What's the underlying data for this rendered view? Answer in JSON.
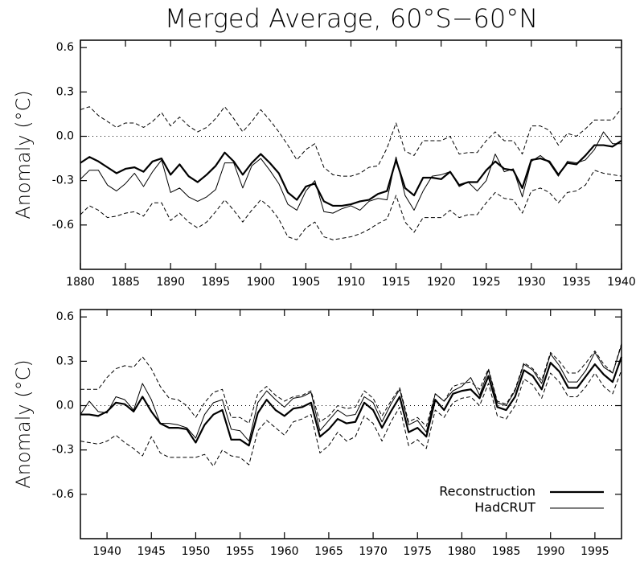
{
  "chart_data": [
    {
      "type": "line",
      "title": "Merged Average, 60°S−60°N",
      "ylabel": "Anomaly (°C)",
      "x": [
        1880,
        1881,
        1882,
        1883,
        1884,
        1885,
        1886,
        1887,
        1888,
        1889,
        1890,
        1891,
        1892,
        1893,
        1894,
        1895,
        1896,
        1897,
        1898,
        1899,
        1900,
        1901,
        1902,
        1903,
        1904,
        1905,
        1906,
        1907,
        1908,
        1909,
        1910,
        1911,
        1912,
        1913,
        1914,
        1915,
        1916,
        1917,
        1918,
        1919,
        1920,
        1921,
        1922,
        1923,
        1924,
        1925,
        1926,
        1927,
        1928,
        1929,
        1930,
        1931,
        1932,
        1933,
        1934,
        1935,
        1936,
        1937,
        1938,
        1939,
        1940
      ],
      "xlim": [
        1880,
        1940
      ],
      "xticks": [
        1880,
        1885,
        1890,
        1895,
        1900,
        1905,
        1910,
        1915,
        1920,
        1925,
        1930,
        1935,
        1940
      ],
      "ylim": [
        -0.9,
        0.65
      ],
      "yticks": [
        0.6,
        0.3,
        {
          "value": 0,
          "label": "0.0"
        },
        -0.3,
        -0.6
      ],
      "refline": 0,
      "series": [
        {
          "color": "#000000",
          "linewidth": 2.2,
          "style": "solid",
          "values": [
            -0.18,
            -0.14,
            -0.17,
            -0.21,
            -0.25,
            -0.22,
            -0.21,
            -0.24,
            -0.17,
            -0.15,
            -0.26,
            -0.19,
            -0.27,
            -0.31,
            -0.26,
            -0.2,
            -0.11,
            -0.17,
            -0.26,
            -0.18,
            -0.12,
            -0.18,
            -0.25,
            -0.38,
            -0.43,
            -0.34,
            -0.32,
            -0.44,
            -0.47,
            -0.47,
            -0.46,
            -0.44,
            -0.43,
            -0.39,
            -0.37,
            -0.16,
            -0.35,
            -0.4,
            -0.28,
            -0.28,
            -0.29,
            -0.24,
            -0.33,
            -0.31,
            -0.31,
            -0.23,
            -0.17,
            -0.22,
            -0.23,
            -0.35,
            -0.16,
            -0.15,
            -0.17,
            -0.26,
            -0.18,
            -0.19,
            -0.13,
            -0.06,
            -0.06,
            -0.07,
            -0.03
          ]
        },
        {
          "color": "#000000",
          "linewidth": 1,
          "style": "solid",
          "values": [
            -0.29,
            -0.23,
            -0.23,
            -0.33,
            -0.37,
            -0.32,
            -0.25,
            -0.34,
            -0.24,
            -0.16,
            -0.38,
            -0.35,
            -0.41,
            -0.44,
            -0.41,
            -0.36,
            -0.18,
            -0.18,
            -0.35,
            -0.2,
            -0.15,
            -0.23,
            -0.32,
            -0.46,
            -0.5,
            -0.37,
            -0.3,
            -0.51,
            -0.52,
            -0.49,
            -0.47,
            -0.5,
            -0.44,
            -0.42,
            -0.43,
            -0.14,
            -0.4,
            -0.5,
            -0.37,
            -0.27,
            -0.26,
            -0.24,
            -0.34,
            -0.31,
            -0.37,
            -0.3,
            -0.12,
            -0.24,
            -0.22,
            -0.41,
            -0.17,
            -0.13,
            -0.18,
            -0.27,
            -0.17,
            -0.18,
            -0.16,
            -0.09,
            0.03,
            -0.05,
            -0.05
          ]
        },
        {
          "color": "#000000",
          "linewidth": 1,
          "style": "dashed",
          "values": [
            0.18,
            0.2,
            0.14,
            0.1,
            0.06,
            0.09,
            0.09,
            0.06,
            0.1,
            0.16,
            0.07,
            0.13,
            0.07,
            0.03,
            0.06,
            0.12,
            0.2,
            0.12,
            0.03,
            0.1,
            0.18,
            0.11,
            0.03,
            -0.06,
            -0.16,
            -0.09,
            -0.05,
            -0.21,
            -0.26,
            -0.27,
            -0.27,
            -0.25,
            -0.21,
            -0.2,
            -0.08,
            0.09,
            -0.1,
            -0.13,
            -0.03,
            -0.03,
            -0.03,
            0.0,
            -0.12,
            -0.11,
            -0.11,
            -0.03,
            0.03,
            -0.03,
            -0.03,
            -0.12,
            0.07,
            0.07,
            0.04,
            -0.06,
            0.02,
            0.0,
            0.05,
            0.11,
            0.11,
            0.11,
            0.19
          ]
        },
        {
          "color": "#000000",
          "linewidth": 1,
          "style": "dashed",
          "values": [
            -0.53,
            -0.47,
            -0.5,
            -0.55,
            -0.54,
            -0.52,
            -0.51,
            -0.54,
            -0.45,
            -0.45,
            -0.57,
            -0.52,
            -0.58,
            -0.62,
            -0.58,
            -0.51,
            -0.43,
            -0.5,
            -0.58,
            -0.5,
            -0.43,
            -0.48,
            -0.56,
            -0.68,
            -0.7,
            -0.62,
            -0.58,
            -0.68,
            -0.7,
            -0.69,
            -0.68,
            -0.66,
            -0.63,
            -0.59,
            -0.56,
            -0.4,
            -0.58,
            -0.65,
            -0.55,
            -0.55,
            -0.55,
            -0.5,
            -0.55,
            -0.53,
            -0.53,
            -0.45,
            -0.38,
            -0.42,
            -0.43,
            -0.52,
            -0.37,
            -0.35,
            -0.38,
            -0.45,
            -0.38,
            -0.37,
            -0.33,
            -0.23,
            -0.25,
            -0.26,
            -0.27
          ]
        }
      ]
    },
    {
      "type": "line",
      "ylabel": "Anomaly (°C)",
      "legend": "lower right",
      "x": [
        1937,
        1938,
        1939,
        1940,
        1941,
        1942,
        1943,
        1944,
        1945,
        1946,
        1947,
        1948,
        1949,
        1950,
        1951,
        1952,
        1953,
        1954,
        1955,
        1956,
        1957,
        1958,
        1959,
        1960,
        1961,
        1962,
        1963,
        1964,
        1965,
        1966,
        1967,
        1968,
        1969,
        1970,
        1971,
        1972,
        1973,
        1974,
        1975,
        1976,
        1977,
        1978,
        1979,
        1980,
        1981,
        1982,
        1983,
        1984,
        1985,
        1986,
        1987,
        1988,
        1989,
        1990,
        1991,
        1992,
        1993,
        1994,
        1995,
        1996,
        1997,
        1998
      ],
      "xlim": [
        1937,
        1998
      ],
      "xticks": [
        1940,
        1945,
        1950,
        1955,
        1960,
        1965,
        1970,
        1975,
        1980,
        1985,
        1990,
        1995
      ],
      "ylim": [
        -0.9,
        0.65
      ],
      "yticks": [
        0.6,
        0.3,
        {
          "value": 0,
          "label": "0.0"
        },
        -0.3,
        -0.6
      ],
      "refline": 0,
      "series": [
        {
          "name": "Reconstruction",
          "color": "#000000",
          "linewidth": 2.2,
          "style": "solid",
          "values": [
            -0.06,
            -0.06,
            -0.07,
            -0.04,
            0.02,
            0.01,
            -0.04,
            0.06,
            -0.04,
            -0.12,
            -0.15,
            -0.15,
            -0.16,
            -0.25,
            -0.13,
            -0.06,
            -0.03,
            -0.23,
            -0.23,
            -0.27,
            -0.05,
            0.04,
            -0.03,
            -0.07,
            -0.02,
            -0.01,
            0.02,
            -0.21,
            -0.16,
            -0.09,
            -0.12,
            -0.11,
            0.02,
            -0.03,
            -0.15,
            -0.04,
            0.06,
            -0.18,
            -0.15,
            -0.21,
            0.04,
            -0.03,
            0.08,
            0.1,
            0.11,
            0.05,
            0.2,
            -0.01,
            -0.03,
            0.06,
            0.24,
            0.2,
            0.11,
            0.29,
            0.23,
            0.12,
            0.12,
            0.2,
            0.28,
            0.21,
            0.16,
            0.33
          ]
        },
        {
          "name": "HadCRUT",
          "color": "#000000",
          "linewidth": 1,
          "style": "solid",
          "values": [
            -0.06,
            0.03,
            -0.04,
            -0.05,
            0.06,
            0.04,
            -0.03,
            0.15,
            0.04,
            -0.12,
            -0.12,
            -0.13,
            -0.15,
            -0.22,
            -0.06,
            0.02,
            0.04,
            -0.16,
            -0.17,
            -0.24,
            0.02,
            0.1,
            0.04,
            -0.01,
            0.05,
            0.06,
            0.09,
            -0.17,
            -0.1,
            -0.03,
            -0.07,
            -0.06,
            0.06,
            0.02,
            -0.11,
            0.01,
            0.11,
            -0.13,
            -0.1,
            -0.18,
            0.08,
            0.03,
            0.1,
            0.13,
            0.19,
            0.07,
            0.24,
            0.02,
            0.0,
            0.1,
            0.28,
            0.24,
            0.15,
            0.35,
            0.27,
            0.16,
            0.16,
            0.24,
            0.36,
            0.26,
            0.22,
            0.41
          ]
        },
        {
          "color": "#000000",
          "linewidth": 1,
          "style": "dashed",
          "values": [
            0.11,
            0.11,
            0.11,
            0.19,
            0.25,
            0.27,
            0.26,
            0.33,
            0.25,
            0.13,
            0.05,
            0.04,
            0.0,
            -0.08,
            0.02,
            0.09,
            0.11,
            -0.08,
            -0.08,
            -0.12,
            0.08,
            0.13,
            0.07,
            0.03,
            0.06,
            0.07,
            0.1,
            -0.11,
            -0.07,
            0.0,
            -0.02,
            -0.01,
            0.1,
            0.05,
            -0.07,
            0.03,
            0.12,
            -0.11,
            -0.08,
            -0.14,
            0.08,
            0.03,
            0.13,
            0.15,
            0.16,
            0.11,
            0.25,
            0.03,
            0.01,
            0.11,
            0.29,
            0.25,
            0.17,
            0.36,
            0.3,
            0.22,
            0.22,
            0.29,
            0.37,
            0.28,
            0.22,
            0.42
          ]
        },
        {
          "color": "#000000",
          "linewidth": 1,
          "style": "dashed",
          "values": [
            -0.24,
            -0.25,
            -0.26,
            -0.24,
            -0.2,
            -0.25,
            -0.29,
            -0.34,
            -0.21,
            -0.32,
            -0.35,
            -0.35,
            -0.35,
            -0.35,
            -0.33,
            -0.41,
            -0.3,
            -0.34,
            -0.35,
            -0.4,
            -0.17,
            -0.1,
            -0.15,
            -0.2,
            -0.11,
            -0.09,
            -0.06,
            -0.32,
            -0.27,
            -0.18,
            -0.24,
            -0.21,
            -0.07,
            -0.12,
            -0.24,
            -0.11,
            -0.01,
            -0.27,
            -0.23,
            -0.29,
            -0.03,
            -0.08,
            0.02,
            0.05,
            0.06,
            0.0,
            0.15,
            -0.07,
            -0.09,
            0.0,
            0.18,
            0.14,
            0.05,
            0.22,
            0.16,
            0.06,
            0.06,
            0.13,
            0.22,
            0.13,
            0.08,
            0.24
          ]
        }
      ]
    }
  ]
}
